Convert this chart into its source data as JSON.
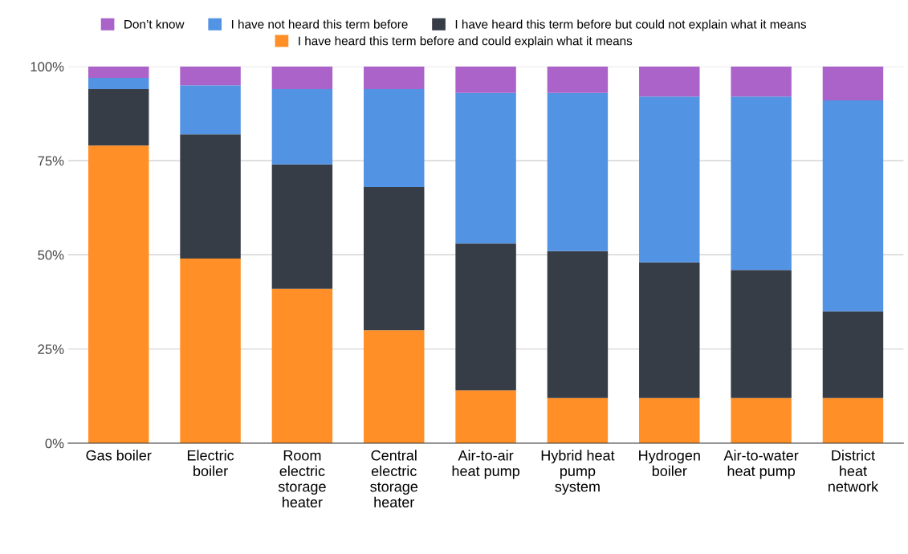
{
  "chart_data": {
    "type": "bar",
    "stacked": true,
    "categories": [
      "Gas boiler",
      "Electric\nboiler",
      "Room\nelectric\nstorage\nheater",
      "Central\nelectric\nstorage\nheater",
      "Air-to-air\nheat pump",
      "Hybrid heat\npump\nsystem",
      "Hydrogen\nboiler",
      "Air-to-water\nheat pump",
      "District\nheat\nnetwork"
    ],
    "series": [
      {
        "name": "I have heard this term before and could explain what it means",
        "color": "#ff8f26",
        "values": [
          79,
          49,
          41,
          30,
          14,
          12,
          12,
          12,
          12
        ]
      },
      {
        "name": "I have heard this term before but could not explain what it means",
        "color": "#373d47",
        "values": [
          15,
          33,
          33,
          38,
          39,
          39,
          36,
          34,
          23
        ]
      },
      {
        "name": "I have not heard this term before",
        "color": "#5393e4",
        "values": [
          3,
          13,
          20,
          26,
          40,
          42,
          44,
          46,
          56
        ]
      },
      {
        "name": "Don’t know",
        "color": "#ab63c9",
        "values": [
          3,
          5,
          6,
          6,
          7,
          7,
          8,
          8,
          9
        ]
      }
    ],
    "ylim": [
      0,
      100
    ],
    "yticks": [
      {
        "value": 0,
        "label": "0%"
      },
      {
        "value": 25,
        "label": "25%"
      },
      {
        "value": 50,
        "label": "50%"
      },
      {
        "value": 75,
        "label": "75%"
      },
      {
        "value": 100,
        "label": "100%"
      }
    ],
    "grid": "y",
    "legend": "top"
  }
}
